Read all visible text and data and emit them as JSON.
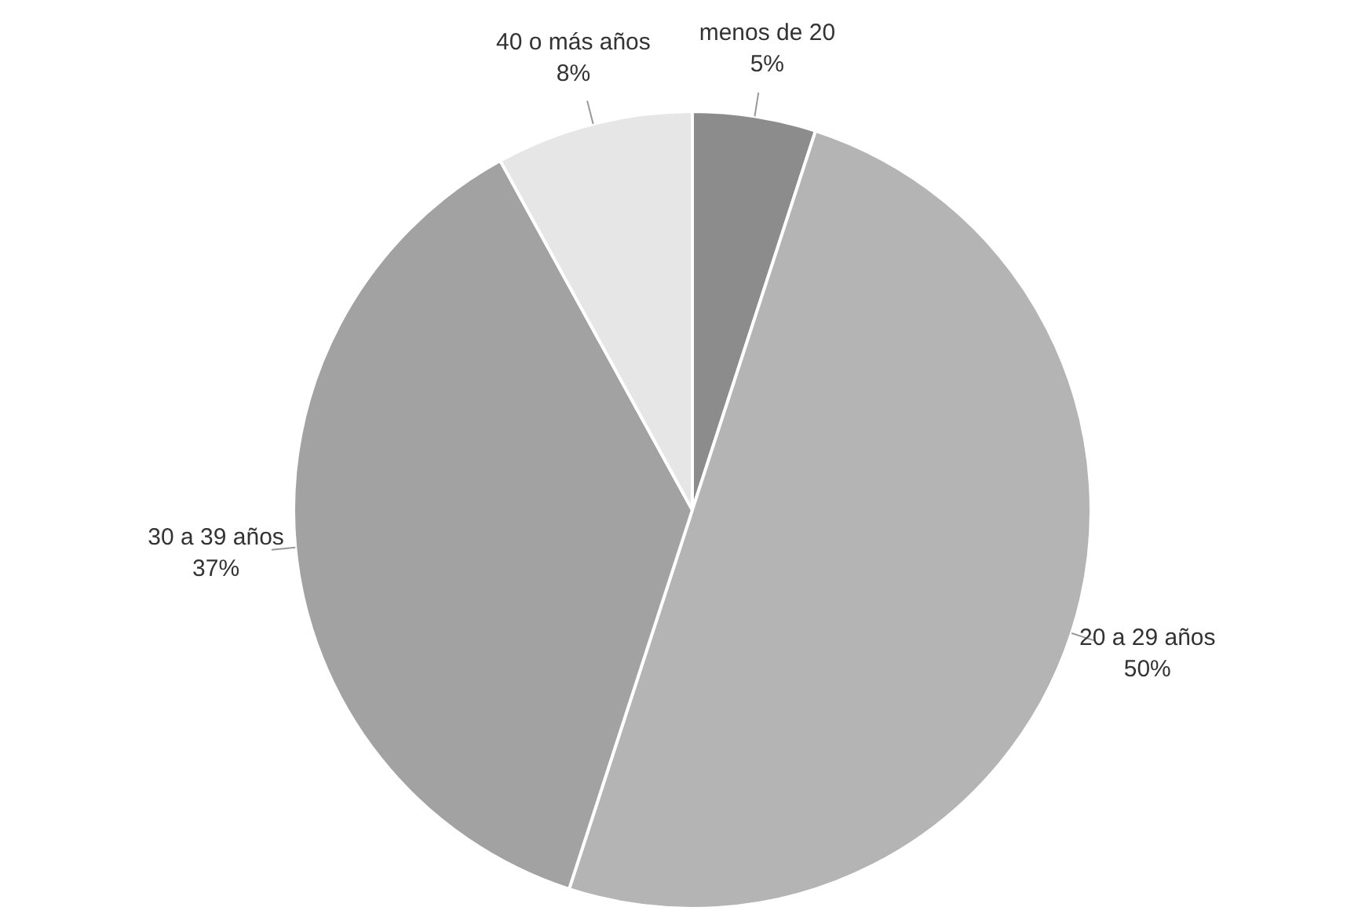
{
  "chart_data": {
    "type": "pie",
    "categories": [
      "menos de 20",
      "20 a 29 años",
      "30 a 39 años",
      "40 o más años"
    ],
    "values": [
      5,
      50,
      37,
      8
    ],
    "value_labels": [
      "5%",
      "50%",
      "37%",
      "8%"
    ],
    "colors": [
      "#8c8c8c",
      "#b4b4b4",
      "#a2a2a2",
      "#e6e6e6"
    ],
    "legend": false
  }
}
